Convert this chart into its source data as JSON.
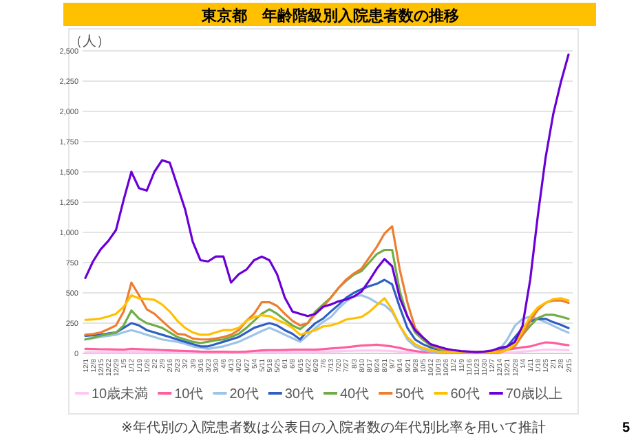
{
  "chart_data": {
    "type": "line",
    "title": "東京都　年齢階級別入院患者数の推移",
    "ylabel": "（人）",
    "categories": [
      "12/1",
      "12/8",
      "12/15",
      "12/22",
      "12/29",
      "1/5",
      "1/12",
      "1/19",
      "1/26",
      "2/2",
      "2/9",
      "2/16",
      "2/23",
      "3/2",
      "3/9",
      "3/16",
      "3/23",
      "3/30",
      "4/6",
      "4/13",
      "4/20",
      "4/27",
      "5/4",
      "5/11",
      "5/18",
      "5/25",
      "6/1",
      "6/8",
      "6/15",
      "6/22",
      "6/29",
      "7/6",
      "7/13",
      "7/20",
      "7/27",
      "8/3",
      "8/10",
      "8/17",
      "8/24",
      "8/31",
      "9/7",
      "9/14",
      "9/21",
      "9/28",
      "10/5",
      "10/12",
      "10/19",
      "10/26",
      "11/2",
      "11/9",
      "11/16",
      "11/23",
      "11/30",
      "12/7",
      "12/14",
      "12/21",
      "12/28",
      "1/4",
      "1/11",
      "1/18",
      "1/25",
      "2/1",
      "2/8",
      "2/15"
    ],
    "ylim": [
      0,
      2500
    ],
    "yticks": [
      0,
      250,
      500,
      750,
      {
        "value": 1000,
        "label": "1,000"
      },
      {
        "value": 1250,
        "label": "1,250"
      },
      {
        "value": 1500,
        "label": "1,500"
      },
      {
        "value": 1750,
        "label": "1,750"
      },
      {
        "value": 2000,
        "label": "2,000"
      },
      {
        "value": 2250,
        "label": "2,250"
      },
      {
        "value": 2500,
        "label": "2,500"
      }
    ],
    "grid": "y",
    "legend": "bottom",
    "series": [
      {
        "name": "10歳未満",
        "color": "#ffc8f4",
        "values": [
          10,
          10,
          10,
          10,
          10,
          10,
          12,
          12,
          10,
          10,
          10,
          8,
          8,
          8,
          6,
          6,
          6,
          6,
          6,
          6,
          6,
          8,
          8,
          10,
          10,
          10,
          10,
          10,
          10,
          10,
          12,
          14,
          16,
          18,
          20,
          22,
          24,
          24,
          24,
          22,
          20,
          15,
          10,
          6,
          4,
          3,
          2,
          2,
          2,
          2,
          2,
          2,
          2,
          2,
          2,
          5,
          10,
          15,
          20,
          25,
          30,
          30,
          28,
          26
        ]
      },
      {
        "name": "10代",
        "color": "#ff5f9e",
        "values": [
          38,
          36,
          34,
          33,
          32,
          31,
          38,
          35,
          32,
          30,
          27,
          25,
          22,
          20,
          18,
          15,
          14,
          13,
          13,
          12,
          12,
          15,
          20,
          25,
          27,
          27,
          28,
          30,
          30,
          31,
          31,
          35,
          40,
          45,
          50,
          58,
          65,
          68,
          72,
          65,
          57,
          45,
          30,
          20,
          11,
          8,
          6,
          5,
          5,
          5,
          5,
          5,
          5,
          5,
          5,
          30,
          40,
          50,
          57,
          75,
          91,
          87,
          76,
          68
        ]
      },
      {
        "name": "20代",
        "color": "#9dc3e6",
        "values": [
          115,
          125,
          135,
          145,
          154,
          175,
          192,
          175,
          154,
          135,
          115,
          105,
          96,
          80,
          58,
          48,
          38,
          48,
          58,
          77,
          96,
          125,
          154,
          185,
          211,
          185,
          154,
          125,
          96,
          150,
          211,
          260,
          300,
          370,
          430,
          470,
          480,
          456,
          418,
          399,
          342,
          228,
          114,
          57,
          30,
          15,
          10,
          8,
          8,
          8,
          8,
          8,
          8,
          10,
          30,
          114,
          228,
          285,
          304,
          285,
          258,
          228,
          198,
          171
        ]
      },
      {
        "name": "30代",
        "color": "#2f5fc4",
        "values": [
          146,
          150,
          154,
          165,
          173,
          211,
          250,
          231,
          192,
          173,
          154,
          135,
          115,
          96,
          77,
          58,
          58,
          77,
          96,
          115,
          135,
          173,
          211,
          231,
          250,
          231,
          192,
          162,
          115,
          192,
          250,
          288,
          346,
          400,
          460,
          500,
          530,
          555,
          575,
          608,
          570,
          380,
          209,
          114,
          76,
          49,
          30,
          20,
          15,
          11,
          11,
          11,
          11,
          15,
          30,
          57,
          133,
          209,
          266,
          285,
          285,
          258,
          236,
          209
        ]
      },
      {
        "name": "40代",
        "color": "#70ad47",
        "values": [
          115,
          130,
          146,
          160,
          173,
          231,
          354,
          288,
          250,
          231,
          211,
          173,
          135,
          115,
          96,
          85,
          96,
          108,
          115,
          135,
          162,
          211,
          269,
          327,
          365,
          327,
          277,
          231,
          200,
          250,
          346,
          404,
          460,
          540,
          600,
          650,
          680,
          750,
          820,
          855,
          855,
          513,
          304,
          171,
          114,
          65,
          38,
          25,
          15,
          11,
          10,
          10,
          10,
          11,
          20,
          30,
          76,
          152,
          228,
          293,
          319,
          319,
          304,
          285
        ]
      },
      {
        "name": "50代",
        "color": "#ed7d31",
        "values": [
          154,
          160,
          173,
          200,
          231,
          346,
          585,
          480,
          365,
          327,
          269,
          211,
          162,
          154,
          123,
          115,
          115,
          123,
          135,
          154,
          192,
          269,
          327,
          423,
          423,
          392,
          327,
          269,
          231,
          250,
          327,
          385,
          460,
          540,
          610,
          660,
          700,
          790,
          880,
          990,
          1050,
          690,
          418,
          209,
          133,
          76,
          46,
          30,
          19,
          15,
          11,
          11,
          11,
          15,
          23,
          30,
          57,
          152,
          266,
          361,
          418,
          437,
          437,
          418
        ]
      },
      {
        "name": "60代",
        "color": "#ffc000",
        "values": [
          277,
          280,
          288,
          305,
          327,
          385,
          480,
          454,
          450,
          442,
          404,
          346,
          269,
          211,
          173,
          154,
          154,
          173,
          192,
          192,
          211,
          269,
          300,
          315,
          308,
          277,
          250,
          211,
          154,
          173,
          192,
          223,
          231,
          250,
          280,
          290,
          300,
          342,
          399,
          456,
          361,
          228,
          133,
          76,
          46,
          27,
          15,
          11,
          11,
          11,
          11,
          11,
          11,
          11,
          11,
          27,
          76,
          190,
          304,
          380,
          418,
          448,
          456,
          437
        ]
      },
      {
        "name": "70歳以上",
        "color": "#6a00d8",
        "values": [
          623,
          760,
          860,
          930,
          1020,
          1270,
          1500,
          1365,
          1345,
          1500,
          1596,
          1577,
          1385,
          1192,
          923,
          770,
          760,
          800,
          800,
          585,
          654,
          692,
          770,
          800,
          770,
          654,
          462,
          346,
          327,
          308,
          327,
          385,
          404,
          430,
          445,
          470,
          510,
          600,
          700,
          780,
          720,
          456,
          304,
          190,
          133,
          76,
          57,
          38,
          27,
          19,
          15,
          11,
          15,
          23,
          46,
          57,
          95,
          228,
          608,
          1140,
          1615,
          1976,
          2242,
          2470
        ]
      }
    ],
    "annotations": [
      "※年代別の入院患者数は公表日の入院者数の年代別比率を用いて推計",
      "5"
    ]
  }
}
